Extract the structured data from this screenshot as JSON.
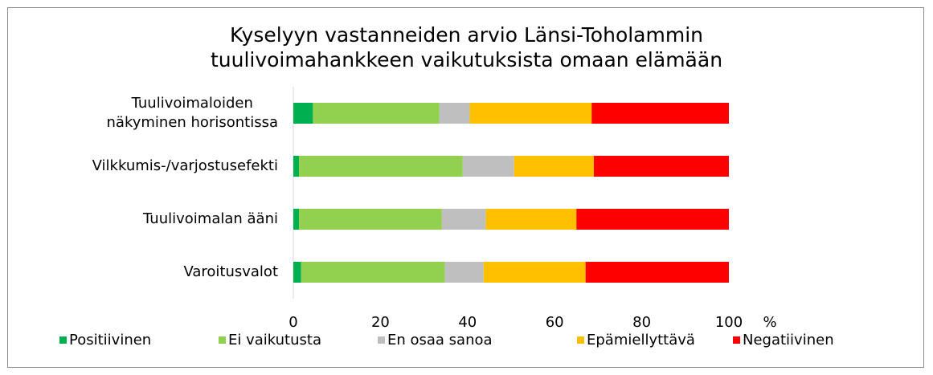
{
  "chart_data": {
    "type": "stacked_barh",
    "title": "Kyselyyn vastanneiden arvio Länsi-Toholammin\ntuulivoimahankkeen vaikutuksista omaan elämään",
    "categories": [
      "Tuulivoimaloiden\nnäkyminen horisontissa",
      "Vilkkumis-/varjostusefekti",
      "Tuulivoimalan ääni",
      "Varoitusvalot"
    ],
    "series": [
      {
        "name": "Positiivinen",
        "color": "#00b050",
        "values": [
          4.5,
          1.3,
          1.3,
          1.8
        ]
      },
      {
        "name": "Ei vaikutusta",
        "color": "#92d050",
        "values": [
          29,
          37.6,
          32.8,
          33
        ]
      },
      {
        "name": "En osaa sanoa",
        "color": "#bfbfbf",
        "values": [
          7,
          11.8,
          10.1,
          8.9
        ]
      },
      {
        "name": "Epämiellyttävä",
        "color": "#ffc000",
        "values": [
          28,
          18.3,
          20.8,
          23.4
        ]
      },
      {
        "name": "Negatiivinen",
        "color": "#ff0000",
        "values": [
          31.5,
          31,
          35,
          32.9
        ]
      }
    ],
    "x_label": "%",
    "xlim": [
      0,
      100
    ],
    "xticks": [
      0,
      20,
      40,
      60,
      80,
      100
    ],
    "legend": "bottom"
  }
}
